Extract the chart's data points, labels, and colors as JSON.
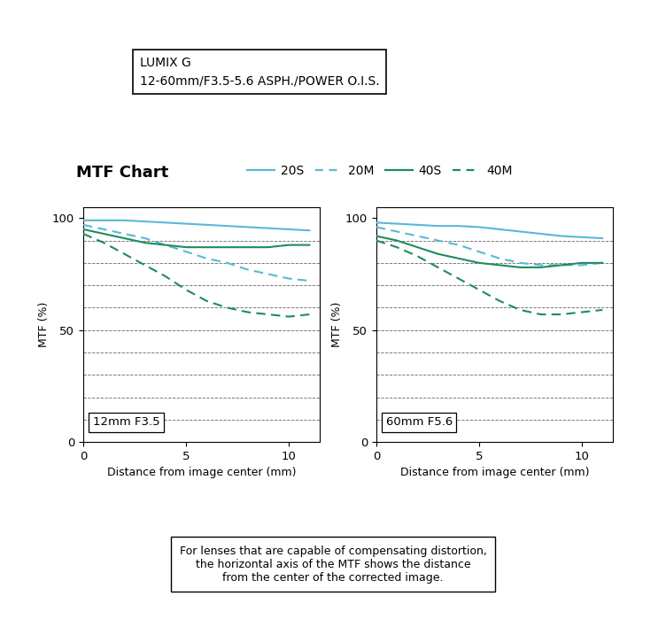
{
  "title_box_text": "LUMIX G\n12-60mm/F3.5-5.6 ASPH./POWER O.I.S.",
  "mtf_label": "MTF Chart",
  "legend_labels": [
    "20S",
    "20M",
    "40S",
    "40M"
  ],
  "color_20": "#5ab8d5",
  "color_40": "#1e8c5a",
  "xlabel": "Distance from image center (mm)",
  "ylabel": "MTF (%)",
  "xlim": [
    0,
    11.5
  ],
  "ylim": [
    0,
    105
  ],
  "yticks": [
    0,
    50,
    100
  ],
  "xticks": [
    0,
    5,
    10
  ],
  "plot1_label": "12mm F3.5",
  "plot2_label": "60mm F5.6",
  "chart1": {
    "x_20S": [
      0,
      1,
      2,
      3,
      4,
      5,
      6,
      7,
      8,
      9,
      10,
      11
    ],
    "y_20S": [
      99,
      99,
      99,
      98.5,
      98,
      97.5,
      97,
      96.5,
      96,
      95.5,
      95,
      94.5
    ],
    "x_20M": [
      0,
      1,
      2,
      3,
      4,
      5,
      6,
      7,
      8,
      9,
      10,
      11
    ],
    "y_20M": [
      97,
      95,
      93,
      91,
      88,
      85,
      82,
      80,
      77,
      75,
      73,
      72
    ],
    "x_40S": [
      0,
      1,
      2,
      3,
      4,
      5,
      6,
      7,
      8,
      9,
      10,
      11
    ],
    "y_40S": [
      95,
      93,
      91,
      89,
      88,
      87,
      87,
      87,
      87,
      87,
      88,
      88
    ],
    "x_40M": [
      0,
      1,
      2,
      3,
      4,
      5,
      6,
      7,
      8,
      9,
      10,
      11
    ],
    "y_40M": [
      93,
      89,
      84,
      79,
      74,
      68,
      63,
      60,
      58,
      57,
      56,
      57
    ]
  },
  "chart2": {
    "x_20S": [
      0,
      1,
      2,
      3,
      4,
      5,
      6,
      7,
      8,
      9,
      10,
      11
    ],
    "y_20S": [
      98,
      97.5,
      97,
      96.5,
      96.5,
      96,
      95,
      94,
      93,
      92,
      91.5,
      91
    ],
    "x_20M": [
      0,
      1,
      2,
      3,
      4,
      5,
      6,
      7,
      8,
      9,
      10,
      11
    ],
    "y_20M": [
      96,
      94,
      92,
      90,
      88,
      85,
      82,
      80,
      79,
      79,
      79,
      80
    ],
    "x_40S": [
      0,
      1,
      2,
      3,
      4,
      5,
      6,
      7,
      8,
      9,
      10,
      11
    ],
    "y_40S": [
      92,
      90,
      87,
      84,
      82,
      80,
      79,
      78,
      78,
      79,
      80,
      80
    ],
    "x_40M": [
      0,
      1,
      2,
      3,
      4,
      5,
      6,
      7,
      8,
      9,
      10,
      11
    ],
    "y_40M": [
      90,
      87,
      83,
      78,
      73,
      68,
      63,
      59,
      57,
      57,
      58,
      59
    ]
  },
  "background_color": "#ffffff",
  "grid_color": "#444444",
  "footnote": "For lenses that are capable of compensating distortion,\nthe horizontal axis of the MTF shows the distance\nfrom the center of the corrected image."
}
